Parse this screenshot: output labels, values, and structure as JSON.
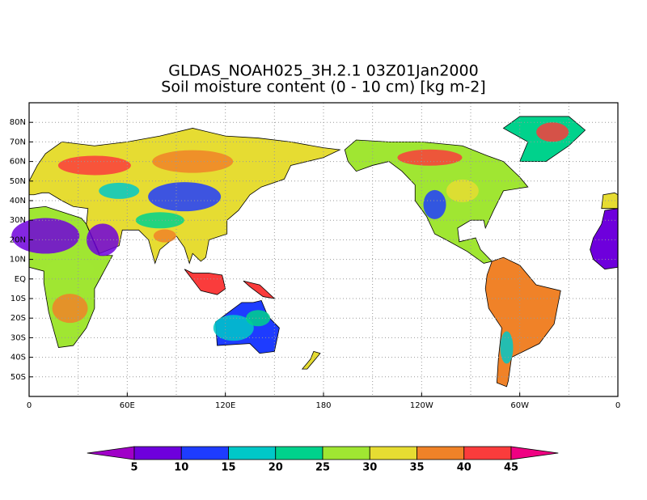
{
  "title": {
    "line1": "GLDAS_NOAH025_3H.2.1 03Z01Jan2000",
    "line2": "Soil moisture content (0 - 10 cm) [kg m-2]"
  },
  "map": {
    "lon_labels": [
      "0",
      "60E",
      "120E",
      "180",
      "120W",
      "60W",
      "0"
    ],
    "lat_labels": [
      "80N",
      "70N",
      "60N",
      "50N",
      "40N",
      "30N",
      "20N",
      "10N",
      "EQ",
      "10S",
      "20S",
      "30S",
      "40S",
      "50S"
    ]
  },
  "colorbar": {
    "levels": [
      5,
      10,
      15,
      20,
      25,
      30,
      35,
      40,
      45
    ],
    "colors": [
      "#a000c8",
      "#6e00dc",
      "#1e3cff",
      "#00c8c8",
      "#00d28c",
      "#a0e632",
      "#e6dc32",
      "#f08228",
      "#fa3c3c",
      "#f00082"
    ]
  }
}
